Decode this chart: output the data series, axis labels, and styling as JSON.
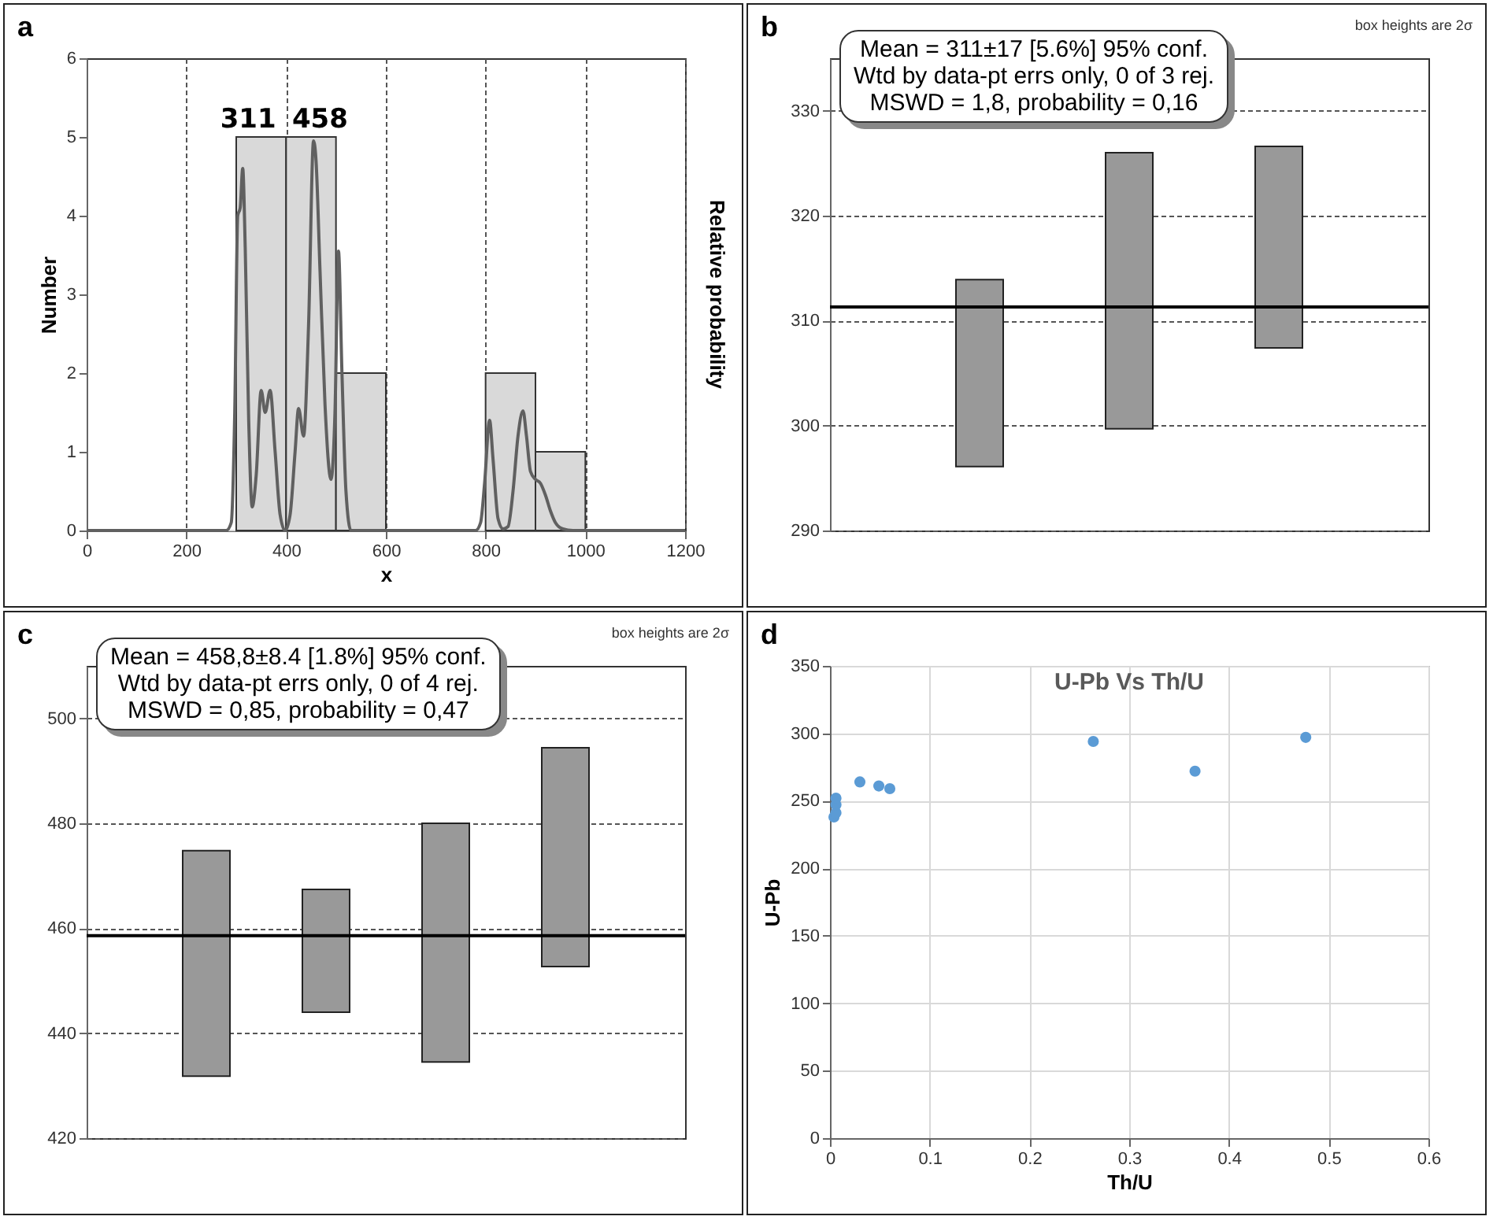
{
  "chart_data": [
    {
      "type": "histogram",
      "annotations": [
        "a",
        "311",
        "458"
      ],
      "xlabel": "x",
      "ylabel": "Number",
      "y2label": "Relative probability",
      "bins": [
        0,
        100,
        200,
        300,
        400,
        500,
        600,
        700,
        800,
        900,
        1000,
        1100,
        1200
      ],
      "values": [
        0,
        0,
        0,
        5,
        5,
        2,
        0,
        0,
        2,
        1,
        0,
        0
      ],
      "color": "#d9d9d9",
      "series": [
        {
          "type": "line",
          "color": "#606060",
          "x": [
            0,
            280,
            290,
            297,
            303,
            308,
            313,
            318,
            325,
            332,
            340,
            350,
            358,
            368,
            378,
            388,
            398,
            408,
            418,
            425,
            435,
            445,
            455,
            460,
            468,
            478,
            490,
            498,
            505,
            512,
            520,
            530,
            600,
            780,
            790,
            798,
            808,
            815,
            825,
            835,
            845,
            855,
            865,
            875,
            882,
            890,
            900,
            910,
            920,
            930,
            940,
            955,
            975,
            1000,
            1200
          ],
          "values": [
            0,
            0,
            0.1,
            1.5,
            4.0,
            4.1,
            4.6,
            3.6,
            1.4,
            0.3,
            0.7,
            1.78,
            1.5,
            1.78,
            1.0,
            0.2,
            0,
            0.2,
            1.0,
            1.55,
            1.2,
            2.6,
            4.95,
            4.7,
            3.3,
            1.6,
            0.65,
            1.5,
            3.55,
            2.0,
            0.5,
            0,
            0,
            0,
            0.1,
            0.6,
            1.4,
            0.9,
            0.15,
            0.02,
            0.05,
            0.5,
            1.2,
            1.52,
            1.2,
            0.75,
            0.65,
            0.6,
            0.45,
            0.25,
            0.1,
            0.02,
            0,
            0,
            0
          ]
        }
      ],
      "xlim": [
        0,
        1200
      ],
      "xticks": [
        0,
        200,
        400,
        600,
        800,
        1000,
        1200
      ],
      "ylim": [
        0,
        6
      ],
      "yticks": [
        0,
        1,
        2,
        3,
        4,
        5,
        6
      ],
      "grid": "x"
    },
    {
      "type": "bar",
      "annotations": [
        "b",
        "box heights are 2σ",
        "Mean = 311±17  [5.6%]  95% conf.",
        "Wtd by data-pt errs only, 0 of 3 rej.",
        "MSWD = 1,8, probability = 0,16"
      ],
      "categories": [
        null,
        null,
        null
      ],
      "base": [
        296.1,
        299.7,
        307.4
      ],
      "values": [
        17.8,
        26.3,
        19.2
      ],
      "color": "#999999",
      "ylim": [
        290,
        335
      ],
      "yticks": [
        290,
        300,
        310,
        320,
        330
      ],
      "grid": "y",
      "tick_labels": "y",
      "ref_lines": [
        {
          "axis": "y",
          "value": 311.3,
          "color": "#000000"
        }
      ]
    },
    {
      "type": "bar",
      "annotations": [
        "c",
        "box heights are 2σ",
        "Mean = 458,8±8.4  [1.8%]  95% conf.",
        "Wtd by data-pt errs only, 0 of 4 rej.",
        "MSWD = 0,85, probability = 0,47"
      ],
      "categories": [
        null,
        null,
        null,
        null
      ],
      "base": [
        431.8,
        444.0,
        434.5,
        452.7
      ],
      "values": [
        43.0,
        23.4,
        45.5,
        41.7
      ],
      "color": "#999999",
      "ylim": [
        420,
        510
      ],
      "yticks": [
        420,
        440,
        460,
        480,
        500
      ],
      "grid": "y",
      "tick_labels": "y",
      "ref_lines": [
        {
          "axis": "y",
          "value": 458.6,
          "color": "#000000"
        }
      ]
    },
    {
      "type": "scatter",
      "annotations": [
        "d"
      ],
      "title": "U-Pb Vs Th/U",
      "xlabel": "Th/U",
      "ylabel": "U-Pb",
      "x": [
        0.004,
        0.006,
        0.006,
        0.006,
        0.03,
        0.049,
        0.06,
        0.264,
        0.366,
        0.477
      ],
      "values": [
        238,
        241,
        247,
        252,
        264,
        261,
        259,
        294,
        272,
        297
      ],
      "color": "#5b9bd5",
      "marker": "circle",
      "xlim": [
        0,
        0.6
      ],
      "xticks": [
        0,
        0.1,
        0.2,
        0.3,
        0.4,
        0.5,
        0.6
      ],
      "ylim": [
        0,
        350
      ],
      "yticks": [
        0,
        50,
        100,
        150,
        200,
        250,
        300,
        350
      ],
      "grid": true
    }
  ]
}
